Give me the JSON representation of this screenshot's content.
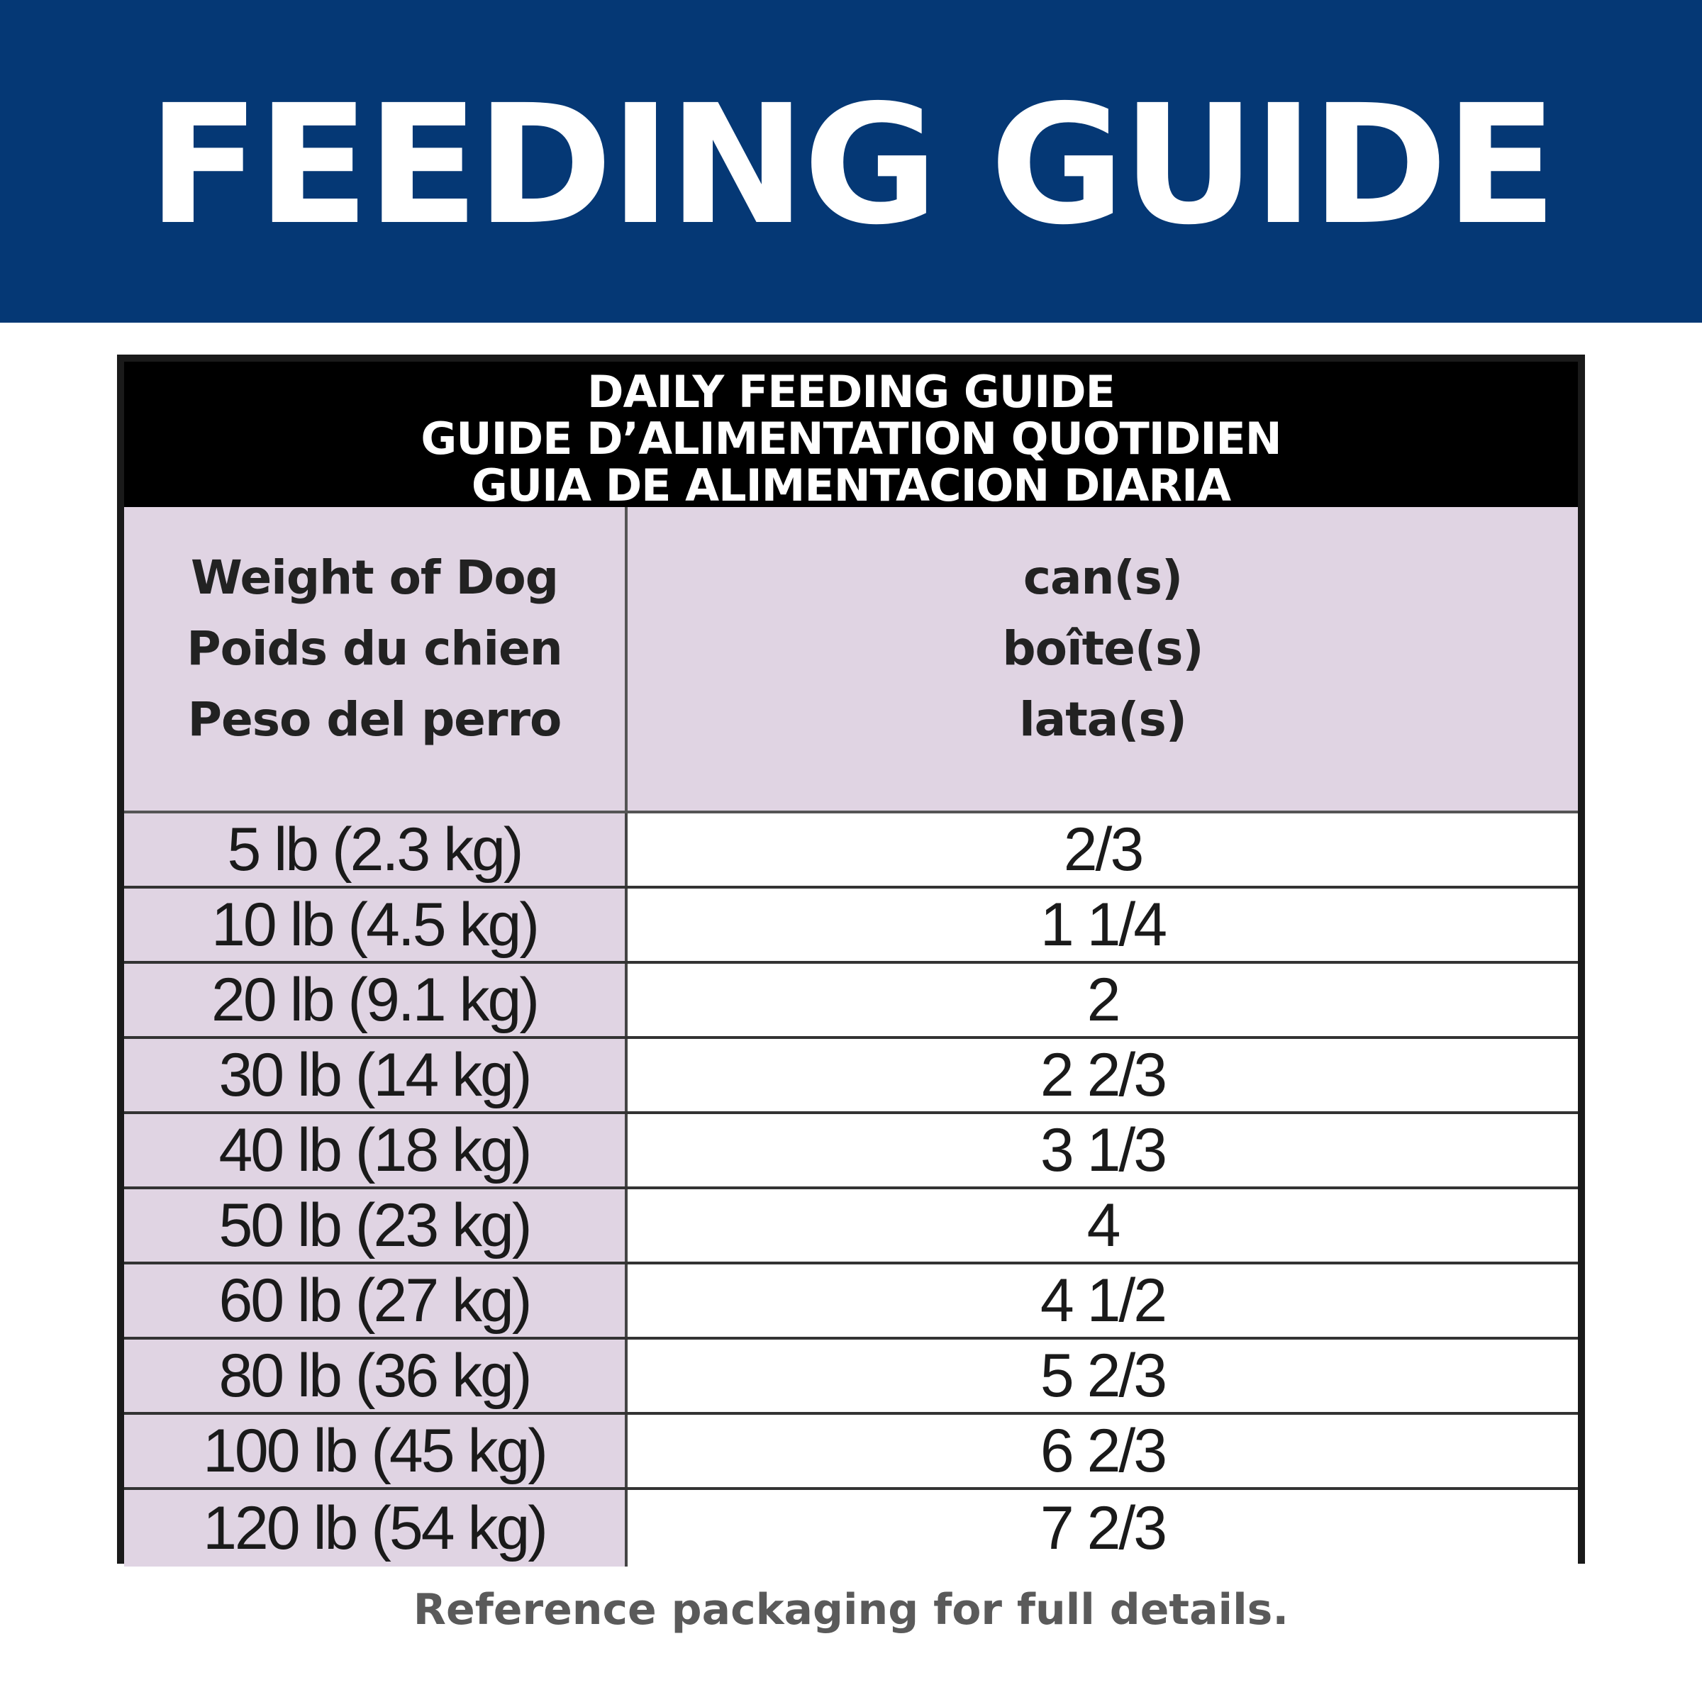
{
  "banner": {
    "title": "FEEDING GUIDE"
  },
  "table": {
    "title_lines": [
      "DAILY FEEDING GUIDE",
      "GUIDE D’ALIMENTATION QUOTIDIEN",
      "GUIA DE ALIMENTACION DIARIA"
    ],
    "weight_header": [
      "Weight of Dog",
      "Poids du chien",
      "Peso del perro"
    ],
    "amount_header": [
      "can(s)",
      "boîte(s)",
      "lata(s)"
    ],
    "rows": [
      {
        "weight": "5 lb (2.3 kg)",
        "cans": "2/3"
      },
      {
        "weight": "10 lb (4.5 kg)",
        "cans": "1 1/4"
      },
      {
        "weight": "20 lb (9.1 kg)",
        "cans": "2"
      },
      {
        "weight": "30 lb (14 kg)",
        "cans": "2 2/3"
      },
      {
        "weight": "40 lb (18 kg)",
        "cans": "3 1/3"
      },
      {
        "weight": "50 lb (23 kg)",
        "cans": "4"
      },
      {
        "weight": "60 lb (27 kg)",
        "cans": "4 1/2"
      },
      {
        "weight": "80 lb (36 kg)",
        "cans": "5 2/3"
      },
      {
        "weight": "100 lb (45 kg)",
        "cans": "6 2/3"
      },
      {
        "weight": "120 lb (54 kg)",
        "cans": "7 2/3"
      }
    ]
  },
  "footnote": "Reference packaging for full details.",
  "colors": {
    "banner_blue": "#053875",
    "header_black": "#000000",
    "lavender": "#e0d4e3",
    "footnote_gray": "#5a5a5a"
  }
}
